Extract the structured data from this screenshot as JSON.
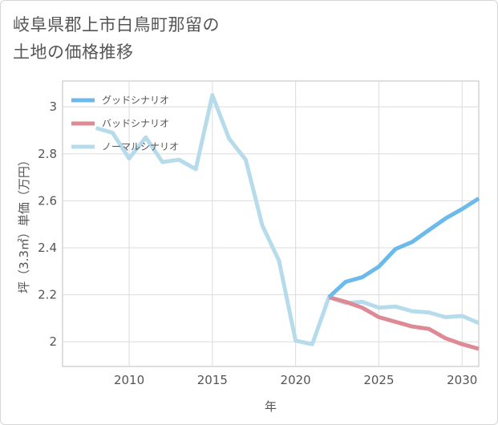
{
  "title_line1": "岐阜県郡上市白鳥町那留の",
  "title_line2": "土地の価格推移",
  "chart_data": {
    "type": "line",
    "xlabel": "年",
    "ylabel": "坪（3.3㎡）単価（万円）",
    "xlim": [
      2006,
      2031
    ],
    "ylim": [
      1.895,
      3.11
    ],
    "x_ticks": [
      2010,
      2015,
      2020,
      2025,
      2030
    ],
    "y_ticks": [
      2,
      2.2,
      2.4,
      2.6,
      2.8,
      3
    ],
    "grid": true,
    "legend_position": "top-left",
    "series": [
      {
        "name": "グッドシナリオ",
        "color": "#6cb9ec",
        "x": [
          2022,
          2023,
          2024,
          2025,
          2026,
          2027,
          2028,
          2029,
          2030,
          2031
        ],
        "y": [
          2.19,
          2.255,
          2.275,
          2.32,
          2.395,
          2.425,
          2.475,
          2.525,
          2.565,
          2.61
        ]
      },
      {
        "name": "バッドシナリオ",
        "color": "#de8a94",
        "x": [
          2022,
          2023,
          2024,
          2025,
          2026,
          2027,
          2028,
          2029,
          2030,
          2031
        ],
        "y": [
          2.19,
          2.17,
          2.145,
          2.105,
          2.085,
          2.065,
          2.055,
          2.015,
          1.99,
          1.97
        ]
      },
      {
        "name": "ノーマルシナリオ",
        "color": "#b6dcec",
        "x": [
          2008,
          2009,
          2010,
          2011,
          2012,
          2013,
          2014,
          2015,
          2016,
          2017,
          2018,
          2019,
          2020,
          2021,
          2022,
          2023,
          2024,
          2025,
          2026,
          2027,
          2028,
          2029,
          2030,
          2031
        ],
        "y": [
          2.91,
          2.89,
          2.78,
          2.87,
          2.765,
          2.775,
          2.735,
          3.05,
          2.865,
          2.775,
          2.495,
          2.345,
          2.005,
          1.99,
          2.19,
          2.165,
          2.17,
          2.145,
          2.15,
          2.13,
          2.125,
          2.105,
          2.11,
          2.08
        ]
      }
    ]
  }
}
